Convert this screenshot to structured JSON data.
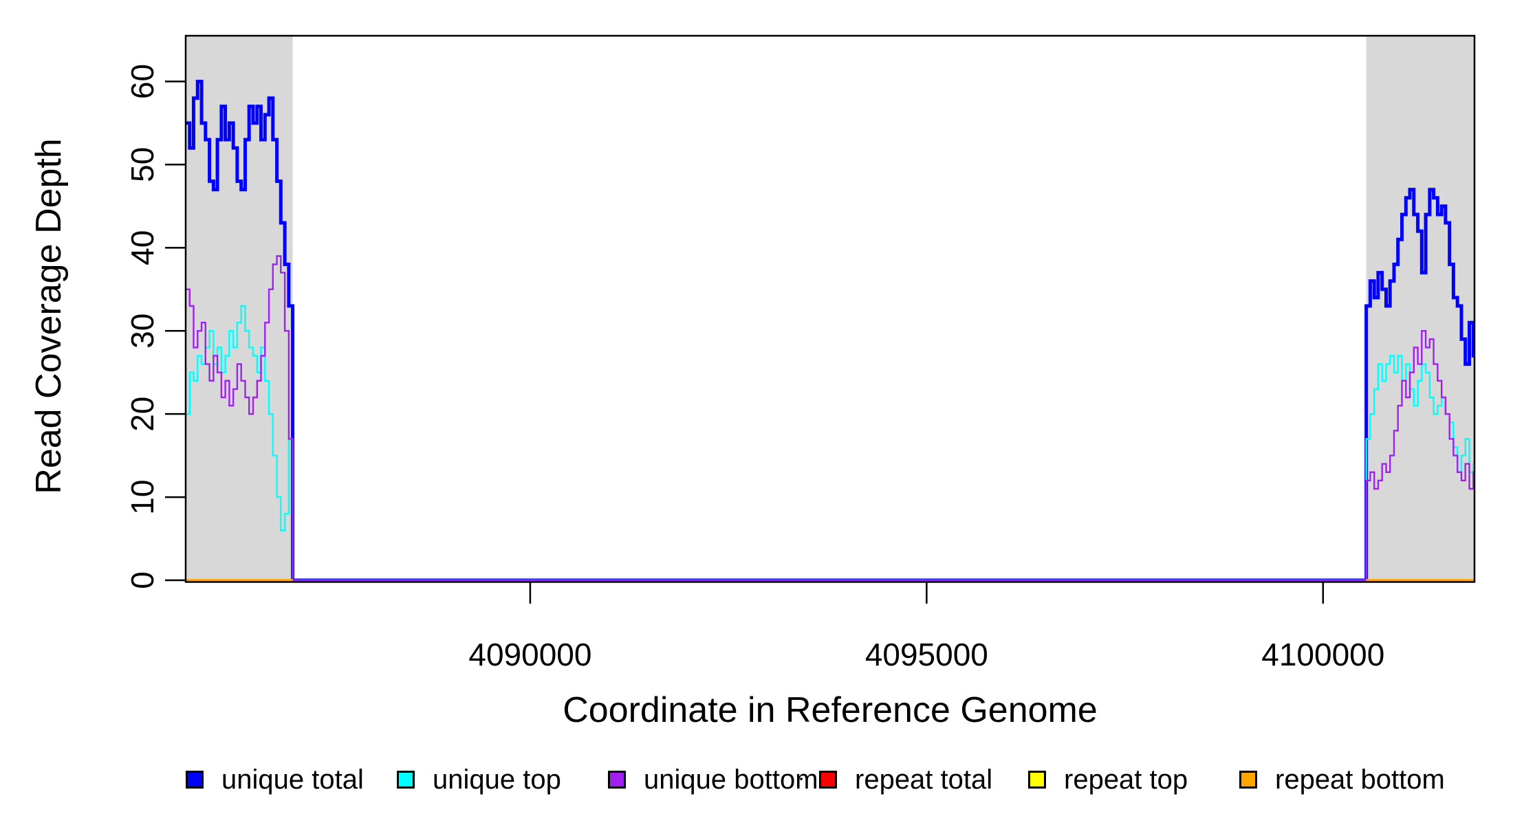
{
  "chart_data": {
    "type": "line",
    "subtype": "step",
    "title": "",
    "xlabel": "Coordinate in Reference Genome",
    "ylabel": "Read Coverage Depth",
    "xlim": [
      4085655,
      4101910
    ],
    "ylim": [
      0,
      65.5
    ],
    "xtick_values": [
      4090000,
      4095000,
      4100000
    ],
    "xtick_labels": [
      "4090000",
      "4095000",
      "4100000"
    ],
    "ytick_values": [
      0,
      10,
      20,
      30,
      40,
      50,
      60
    ],
    "ytick_labels": [
      "0",
      "10",
      "20",
      "30",
      "40",
      "50",
      "60"
    ],
    "grid": false,
    "legend_position": "bottom",
    "band_color": "#D8D8D8",
    "frame_color": "#000000",
    "bin_size_bp": 50,
    "shaded_regions": [
      {
        "start": 4085655,
        "end": 4087005
      },
      {
        "start": 4100545,
        "end": 4101910
      }
    ],
    "series": [
      {
        "name": "unique total",
        "color": "#0000FF",
        "line_width": 5,
        "parts": [
          {
            "x0": 4085655,
            "step": 50,
            "values": [
              55,
              52,
              58,
              60,
              55,
              53,
              48,
              47,
              53,
              57,
              53,
              55,
              52,
              48,
              47,
              53,
              57,
              55,
              57,
              53,
              56,
              58,
              53,
              48,
              43,
              38,
              33
            ]
          },
          {
            "x0": 4087005,
            "x1": 4100545,
            "const": 0
          },
          {
            "x0": 4100545,
            "step": 50,
            "values": [
              33,
              36,
              34,
              37,
              35,
              33,
              36,
              38,
              41,
              44,
              46,
              47,
              44,
              42,
              37,
              44,
              47,
              46,
              44,
              45,
              43,
              38,
              34,
              33,
              29,
              26,
              31,
              27
            ]
          }
        ]
      },
      {
        "name": "unique top",
        "color": "#00FFFF",
        "line_width": 2.4,
        "parts": [
          {
            "x0": 4085655,
            "step": 50,
            "values": [
              20,
              25,
              24,
              27,
              26,
              28,
              30,
              26,
              28,
              25,
              27,
              30,
              28,
              31,
              33,
              30,
              28,
              27,
              25,
              28,
              24,
              20,
              15,
              10,
              6,
              8,
              17
            ]
          },
          {
            "x0": 4087005,
            "x1": 4100545,
            "const": 0
          },
          {
            "x0": 4100545,
            "step": 50,
            "values": [
              17,
              20,
              23,
              26,
              24,
              26,
              27,
              25,
              27,
              24,
              26,
              23,
              21,
              24,
              26,
              25,
              22,
              20,
              21,
              22,
              20,
              19,
              16,
              13,
              15,
              17,
              13,
              14
            ]
          }
        ]
      },
      {
        "name": "unique bottom",
        "color": "#A020F0",
        "line_width": 2.4,
        "parts": [
          {
            "x0": 4085655,
            "step": 50,
            "values": [
              35,
              33,
              28,
              30,
              31,
              26,
              24,
              27,
              25,
              22,
              24,
              21,
              23,
              26,
              24,
              22,
              20,
              22,
              24,
              27,
              31,
              35,
              38,
              39,
              37,
              30,
              17
            ]
          },
          {
            "x0": 4087005,
            "x1": 4100545,
            "const": 0
          },
          {
            "x0": 4100545,
            "step": 50,
            "values": [
              12,
              13,
              11,
              12,
              14,
              13,
              15,
              18,
              21,
              24,
              22,
              25,
              28,
              26,
              30,
              28,
              29,
              26,
              24,
              22,
              20,
              17,
              15,
              13,
              12,
              14,
              11,
              13
            ]
          }
        ]
      },
      {
        "name": "repeat total",
        "color": "#FF0000",
        "line_width": 3,
        "parts": [
          {
            "x0": 4085655,
            "x1": 4087005,
            "const": 0
          },
          {
            "x0": 4100545,
            "x1": 4101910,
            "const": 0
          }
        ]
      },
      {
        "name": "repeat top",
        "color": "#FFFF00",
        "line_width": 3,
        "parts": [
          {
            "x0": 4085655,
            "x1": 4087005,
            "const": 0
          },
          {
            "x0": 4100545,
            "x1": 4101910,
            "const": 0
          }
        ]
      },
      {
        "name": "repeat bottom",
        "color": "#FFA500",
        "line_width": 3.6,
        "parts": [
          {
            "x0": 4085655,
            "x1": 4087005,
            "const": 0
          },
          {
            "x0": 4100545,
            "x1": 4101910,
            "const": 0
          }
        ]
      }
    ]
  }
}
